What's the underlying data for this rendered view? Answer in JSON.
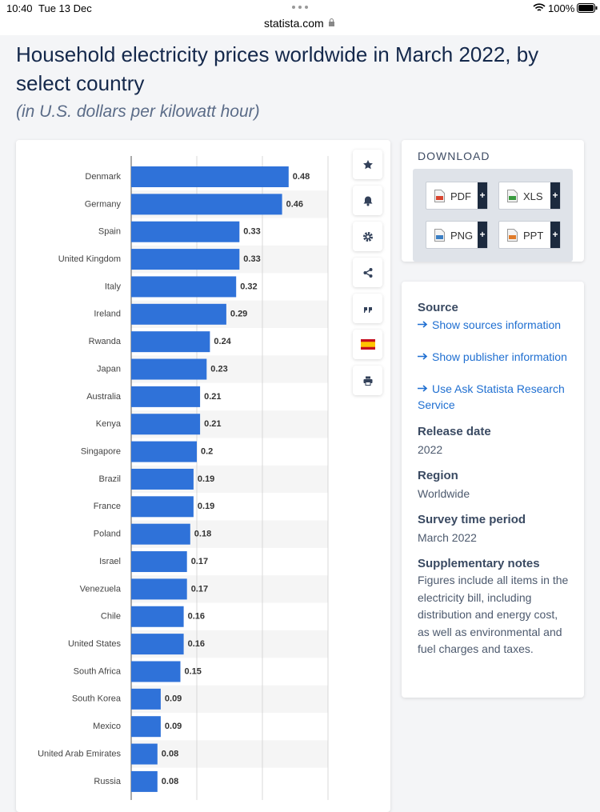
{
  "status_bar": {
    "time": "10:40",
    "date": "Tue 13 Dec",
    "url": "statista.com",
    "battery": "100%"
  },
  "header": {
    "title": "Household electricity prices worldwide in March 2022, by select country",
    "subtitle": "(in U.S. dollars per kilowatt hour)"
  },
  "chart_data": {
    "type": "hbar",
    "categories": [
      "Denmark",
      "Germany",
      "Spain",
      "United Kingdom",
      "Italy",
      "Ireland",
      "Rwanda",
      "Japan",
      "Australia",
      "Kenya",
      "Singapore",
      "Brazil",
      "France",
      "Poland",
      "Israel",
      "Venezuela",
      "Chile",
      "United States",
      "South Africa",
      "South Korea",
      "Mexico",
      "United Arab Emirates",
      "Russia"
    ],
    "values": [
      0.48,
      0.46,
      0.33,
      0.33,
      0.32,
      0.29,
      0.24,
      0.23,
      0.21,
      0.21,
      0.2,
      0.19,
      0.19,
      0.18,
      0.17,
      0.17,
      0.16,
      0.16,
      0.15,
      0.09,
      0.09,
      0.08,
      0.08
    ],
    "color": "#2f72d9",
    "xlim": [
      0,
      0.6
    ],
    "xticks": [
      0,
      0.2,
      0.4,
      0.6
    ],
    "grid": true
  },
  "download": {
    "heading": "DOWNLOAD",
    "plus": "+",
    "buttons": [
      "PDF",
      "XLS",
      "PNG",
      "PPT"
    ]
  },
  "details": {
    "source_heading": "Source",
    "links": [
      "Show sources information",
      "Show publisher information",
      "Use Ask Statista Research Service"
    ],
    "release_heading": "Release date",
    "release_value": "2022",
    "region_heading": "Region",
    "region_value": "Worldwide",
    "survey_heading": "Survey time period",
    "survey_value": "March 2022",
    "notes_heading": "Supplementary notes",
    "notes_value": "Figures include all items in the electricity bill, including distribution and energy cost, as well as environmental and fuel charges and taxes."
  }
}
